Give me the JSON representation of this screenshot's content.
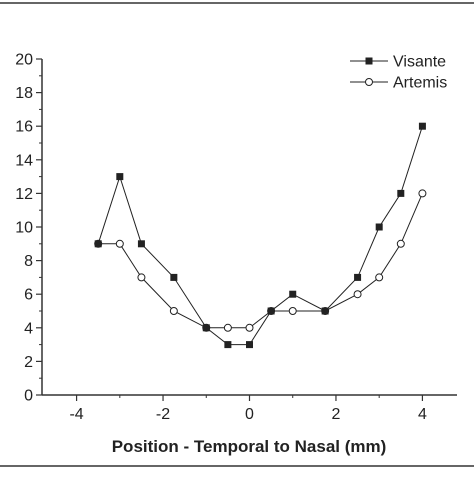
{
  "chart_data": {
    "type": "line",
    "title": "",
    "xlabel": "Position - Temporal to Nasal (mm)",
    "ylabel": "",
    "xlim": [
      -4.8,
      4.8
    ],
    "ylim": [
      0,
      20
    ],
    "xticks": [
      -4,
      -2,
      0,
      2,
      4
    ],
    "yticks": [
      0,
      2,
      4,
      6,
      8,
      10,
      12,
      14,
      16,
      18,
      20
    ],
    "grid": false,
    "legend_position": "top-right",
    "series": [
      {
        "name": "Visante",
        "marker": "filled-square",
        "color": "#222222",
        "x": [
          -3.5,
          -3,
          -2.5,
          -1.75,
          -1,
          -0.5,
          0,
          0.5,
          1,
          1.75,
          2.5,
          3,
          3.5,
          4
        ],
        "y": [
          9,
          13,
          9,
          7,
          4,
          3,
          3,
          5,
          6,
          5,
          7,
          10,
          12,
          16
        ]
      },
      {
        "name": "Artemis",
        "marker": "open-circle",
        "color": "#222222",
        "x": [
          -3.5,
          -3,
          -2.5,
          -1.75,
          -1,
          -0.5,
          0,
          0.5,
          1,
          1.75,
          2.5,
          3,
          3.5,
          4
        ],
        "y": [
          9,
          9,
          7,
          5,
          4,
          4,
          4,
          5,
          5,
          5,
          6,
          7,
          9,
          12
        ]
      }
    ]
  }
}
